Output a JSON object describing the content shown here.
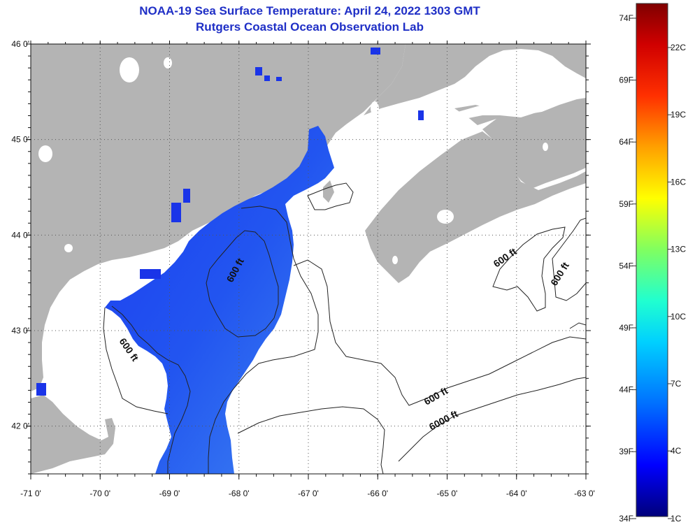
{
  "title": {
    "line1": "NOAA-19 Sea Surface Temperature:  April 24, 2022 1303 GMT",
    "line2": "Rutgers Coastal Ocean Observation Lab"
  },
  "map": {
    "lon_range": [
      -71.0,
      -63.0
    ],
    "lat_range": [
      41.5,
      46.0
    ],
    "lon_ticks": [
      {
        "value": -71,
        "label": "-71 0'"
      },
      {
        "value": -70,
        "label": "-70 0'"
      },
      {
        "value": -69,
        "label": "-69 0'"
      },
      {
        "value": -68,
        "label": "-68 0'"
      },
      {
        "value": -67,
        "label": "-67 0'"
      },
      {
        "value": -66,
        "label": "-66 0'"
      },
      {
        "value": -65,
        "label": "-65 0'"
      },
      {
        "value": -64,
        "label": "-64 0'"
      },
      {
        "value": -63,
        "label": "-63 0'"
      }
    ],
    "lat_ticks": [
      {
        "value": 46,
        "label": "46 0'"
      },
      {
        "value": 45,
        "label": "45 0'"
      },
      {
        "value": 44,
        "label": "44 0'"
      },
      {
        "value": 43,
        "label": "43 0'"
      },
      {
        "value": 42,
        "label": "42 0'"
      }
    ],
    "grid": "dotted",
    "land_color": "#b4b4b4",
    "water_color": "#ffffff",
    "contour_labels": [
      "600 ft",
      "600 ft",
      "600 ft",
      "600 ft",
      "600 ft",
      "6000 ft"
    ]
  },
  "colorbar": {
    "fahrenheit_labels": [
      "74F",
      "69F",
      "64F",
      "59F",
      "54F",
      "49F",
      "44F",
      "39F",
      "34F"
    ],
    "celsius_labels": [
      "22C",
      "19C",
      "16C",
      "13C",
      "10C",
      "7C",
      "4C",
      "1C"
    ],
    "colors": [
      "#00007a",
      "#0000ff",
      "#0070ff",
      "#00d0ff",
      "#20ffd0",
      "#80ff60",
      "#ffff00",
      "#ffa000",
      "#ff3000",
      "#d00000",
      "#800000"
    ]
  }
}
